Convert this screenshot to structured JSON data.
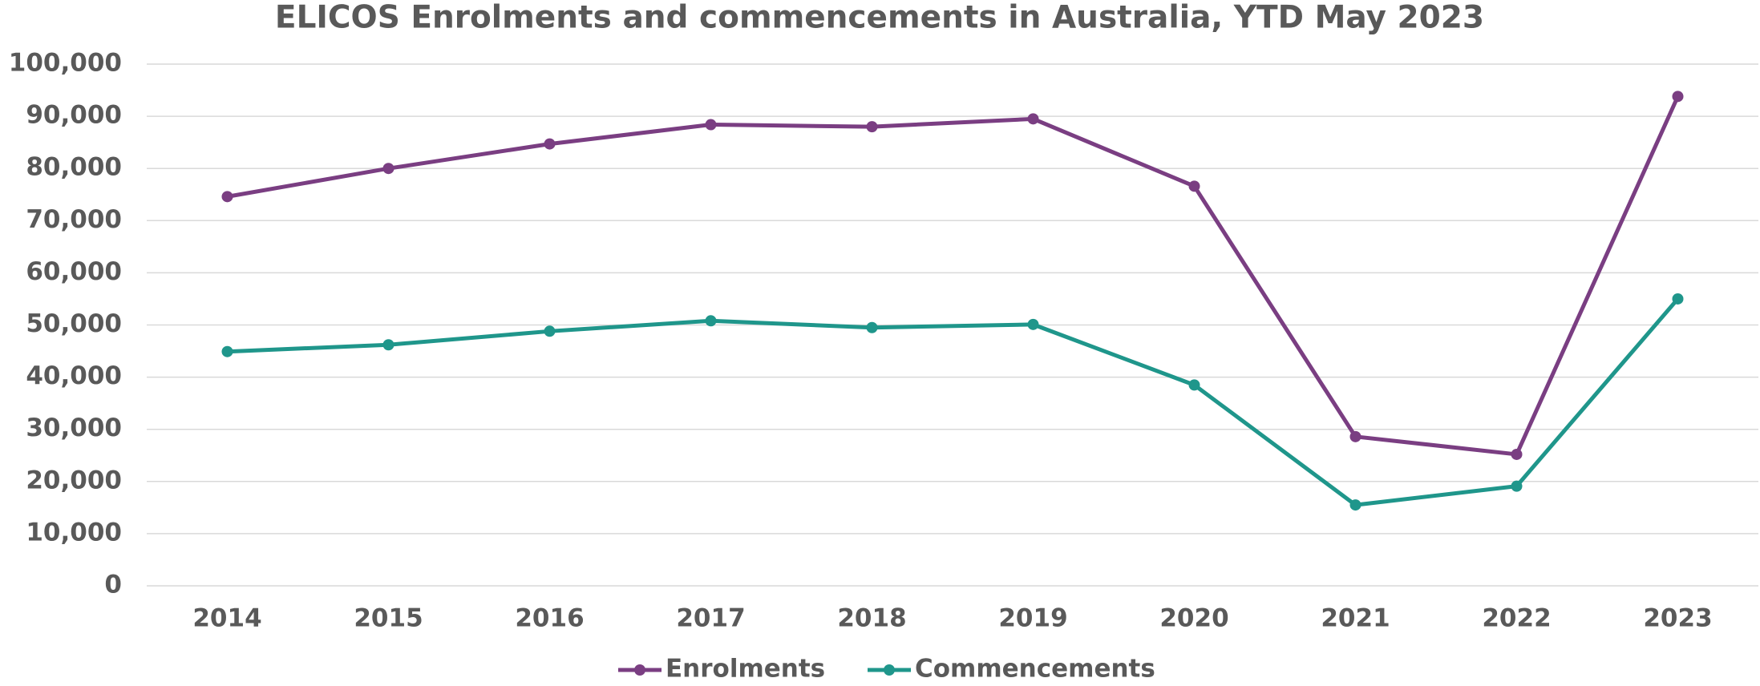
{
  "chart_data": {
    "type": "line",
    "title": "ELICOS Enrolments and commencements in Australia, YTD May 2023",
    "categories": [
      "2014",
      "2015",
      "2016",
      "2017",
      "2018",
      "2019",
      "2020",
      "2021",
      "2022",
      "2023"
    ],
    "series": [
      {
        "name": "Enrolments",
        "color": "#7a3e82",
        "values": [
          74600,
          80000,
          84700,
          88400,
          88000,
          89500,
          76600,
          28600,
          25200,
          93800
        ]
      },
      {
        "name": "Commencements",
        "color": "#1f968b",
        "values": [
          44900,
          46200,
          48800,
          50800,
          49500,
          50100,
          38500,
          15500,
          19100,
          55000
        ]
      }
    ],
    "ylim": [
      0,
      100000
    ],
    "yticks": [
      0,
      {
        "value": 10000,
        "label": "10,000"
      },
      {
        "value": 20000,
        "label": "20,000"
      },
      {
        "value": 30000,
        "label": "30,000"
      },
      {
        "value": 40000,
        "label": "40,000"
      },
      {
        "value": 50000,
        "label": "50,000"
      },
      {
        "value": 60000,
        "label": "60,000"
      },
      {
        "value": 70000,
        "label": "70,000"
      },
      {
        "value": 80000,
        "label": "80,000"
      },
      {
        "value": 90000,
        "label": "90,000"
      },
      {
        "value": 100000,
        "label": "100,000"
      }
    ],
    "grid": true,
    "legend": "bottom"
  }
}
